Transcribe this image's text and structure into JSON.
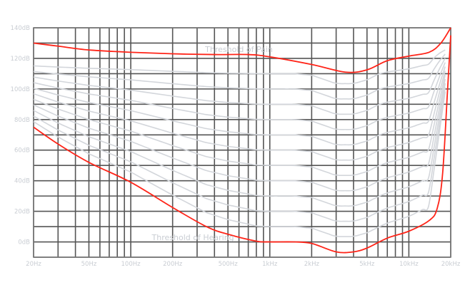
{
  "chart_data": {
    "type": "line",
    "title": "",
    "xlabel": "",
    "ylabel": "",
    "xscale": "log",
    "xlim": [
      20,
      20000
    ],
    "ylim": [
      -10,
      140
    ],
    "grid": true,
    "x_ticks": [
      {
        "value": 20,
        "label": "20Hz"
      },
      {
        "value": 50,
        "label": "50Hz"
      },
      {
        "value": 100,
        "label": "100Hz"
      },
      {
        "value": 200,
        "label": "200Hz"
      },
      {
        "value": 500,
        "label": "500Hz"
      },
      {
        "value": 1000,
        "label": "1kHz"
      },
      {
        "value": 2000,
        "label": "2kHz"
      },
      {
        "value": 5000,
        "label": "5kHz"
      },
      {
        "value": 10000,
        "label": "10kHz"
      },
      {
        "value": 20000,
        "label": "20kHz"
      }
    ],
    "y_ticks": [
      {
        "value": 140,
        "label": "140dB"
      },
      {
        "value": 120,
        "label": "120dB"
      },
      {
        "value": 100,
        "label": "100dB"
      },
      {
        "value": 80,
        "label": "80dB"
      },
      {
        "value": 60,
        "label": "60dB"
      },
      {
        "value": 40,
        "label": "40dB"
      },
      {
        "value": 20,
        "label": "20dB"
      },
      {
        "value": 0,
        "label": "0dB"
      }
    ],
    "annotations": [
      {
        "text": "Threshold of Pain",
        "x": 600,
        "y": 126
      },
      {
        "text": "Threshold of Hearing",
        "x": 280,
        "y": 3
      }
    ],
    "series": [
      {
        "name": "Threshold of Pain",
        "color": "#ff2418",
        "points": [
          [
            20,
            130
          ],
          [
            30,
            128
          ],
          [
            50,
            125.5
          ],
          [
            100,
            124
          ],
          [
            200,
            123
          ],
          [
            400,
            122.5
          ],
          [
            700,
            122.5
          ],
          [
            1000,
            121
          ],
          [
            2000,
            116
          ],
          [
            3500,
            111
          ],
          [
            5000,
            112.5
          ],
          [
            7000,
            118.5
          ],
          [
            10000,
            121.5
          ],
          [
            14000,
            124
          ],
          [
            17000,
            130
          ],
          [
            20000,
            140
          ]
        ]
      },
      {
        "name": "Threshold of Hearing",
        "color": "#ff2418",
        "points": [
          [
            20,
            75
          ],
          [
            30,
            64
          ],
          [
            50,
            52
          ],
          [
            100,
            39
          ],
          [
            200,
            22.5
          ],
          [
            350,
            10
          ],
          [
            500,
            5
          ],
          [
            800,
            0.5
          ],
          [
            1000,
            0
          ],
          [
            1500,
            0
          ],
          [
            2000,
            -1
          ],
          [
            3000,
            -6.5
          ],
          [
            4000,
            -6.5
          ],
          [
            5000,
            -4
          ],
          [
            7000,
            2.5
          ],
          [
            10000,
            7
          ],
          [
            14000,
            14
          ],
          [
            16000,
            22
          ],
          [
            17500,
            45
          ],
          [
            19000,
            100
          ],
          [
            20000,
            135
          ]
        ]
      }
    ],
    "contours": {
      "color": "#d3d6db",
      "phons": [
        10,
        20,
        30,
        40,
        50,
        60,
        70,
        80,
        90,
        100,
        110
      ]
    }
  }
}
